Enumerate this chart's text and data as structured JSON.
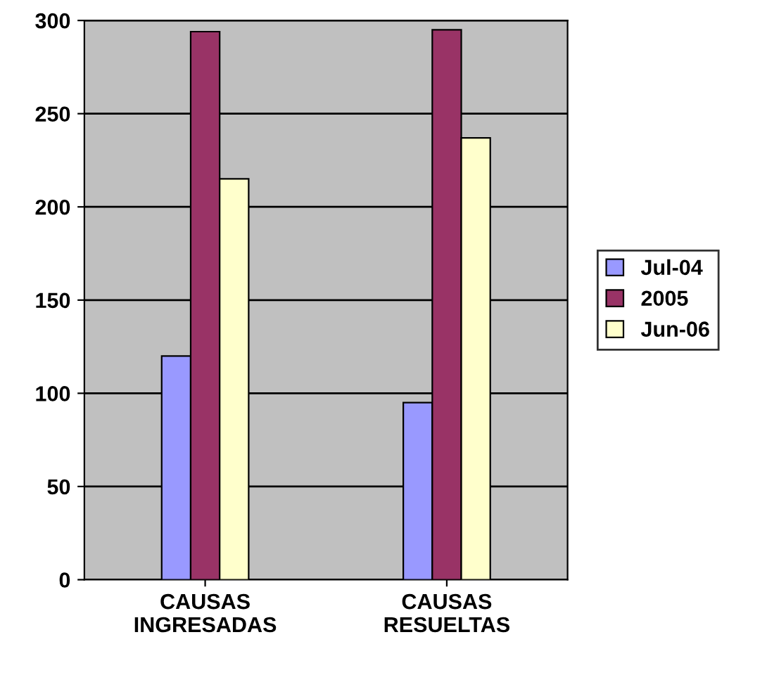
{
  "chart_data": {
    "type": "bar",
    "categories": [
      "CAUSAS\nINGRESADAS",
      "CAUSAS\nRESUELTAS"
    ],
    "series": [
      {
        "name": "Jul-04",
        "color": "#9999ff",
        "values": [
          120,
          95
        ]
      },
      {
        "name": "2005",
        "color": "#993366",
        "values": [
          294,
          295
        ]
      },
      {
        "name": "Jun-06",
        "color": "#ffffcc",
        "values": [
          215,
          237
        ]
      }
    ],
    "ylim": [
      0,
      300
    ],
    "yticks": [
      0,
      50,
      100,
      150,
      200,
      250,
      300
    ],
    "grid": "y",
    "legend": "right"
  }
}
